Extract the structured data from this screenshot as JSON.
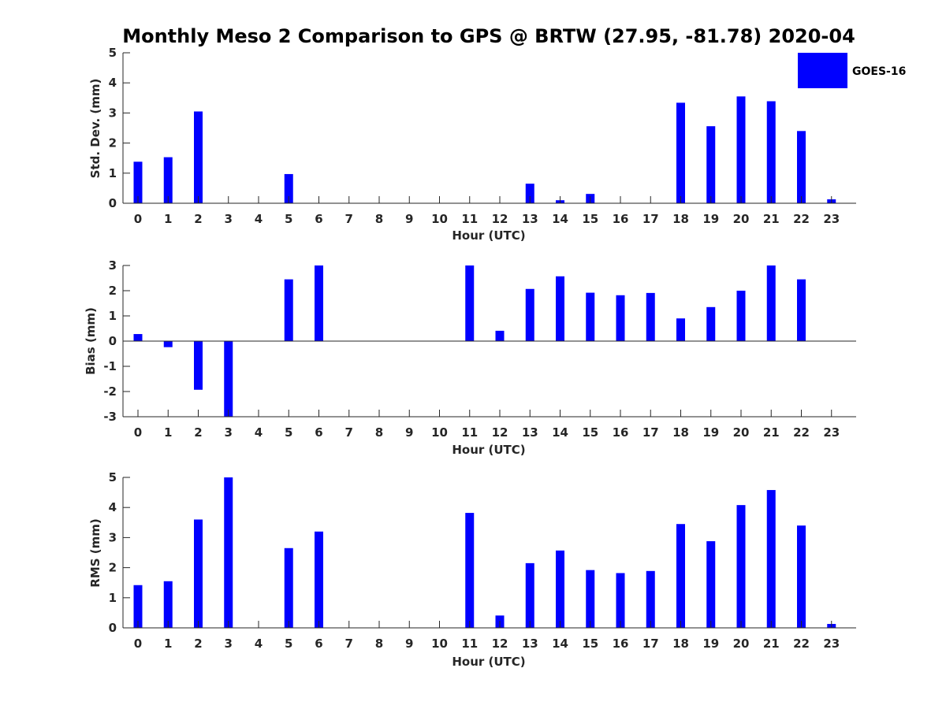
{
  "chart_data": {
    "type": "bar",
    "title": "Monthly Meso 2 Comparison to GPS @ BRTW (27.95, -81.78) 2020-04",
    "legend": {
      "label": "GOES-16",
      "placement": "top-right",
      "color": "#0000ff"
    },
    "series_color": "#0000ff",
    "categories": [
      "0",
      "1",
      "2",
      "3",
      "4",
      "5",
      "6",
      "7",
      "8",
      "9",
      "10",
      "11",
      "12",
      "13",
      "14",
      "15",
      "16",
      "17",
      "18",
      "19",
      "20",
      "21",
      "22",
      "23"
    ],
    "panels": [
      {
        "name": "std-dev",
        "ylabel": "Std. Dev. (mm)",
        "xlabel": "Hour (UTC)",
        "ylim": [
          0,
          5
        ],
        "yticks": [
          0,
          1,
          2,
          3,
          4,
          5
        ],
        "values": [
          1.38,
          1.53,
          3.05,
          null,
          null,
          0.97,
          null,
          null,
          null,
          null,
          null,
          null,
          null,
          0.65,
          0.1,
          0.31,
          null,
          null,
          3.34,
          2.56,
          3.55,
          3.39,
          2.4,
          0.13
        ]
      },
      {
        "name": "bias",
        "ylabel": "Bias (mm)",
        "xlabel": "Hour (UTC)",
        "ylim": [
          -3,
          3
        ],
        "yticks": [
          -3,
          -2,
          -1,
          0,
          1,
          2,
          3
        ],
        "values": [
          0.28,
          -0.24,
          -1.93,
          -3.0,
          null,
          2.45,
          3.0,
          null,
          null,
          null,
          null,
          3.0,
          0.41,
          2.07,
          2.57,
          1.92,
          1.82,
          1.91,
          0.9,
          1.35,
          2.0,
          3.0,
          2.45,
          null
        ]
      },
      {
        "name": "rms",
        "ylabel": "RMS (mm)",
        "xlabel": "Hour (UTC)",
        "ylim": [
          0,
          5
        ],
        "yticks": [
          0,
          1,
          2,
          3,
          4,
          5
        ],
        "values": [
          1.42,
          1.55,
          3.6,
          5.0,
          null,
          2.65,
          3.2,
          null,
          null,
          null,
          null,
          3.82,
          0.41,
          2.15,
          2.57,
          1.92,
          1.82,
          1.89,
          3.45,
          2.88,
          4.08,
          4.58,
          3.4,
          0.13
        ]
      }
    ]
  }
}
